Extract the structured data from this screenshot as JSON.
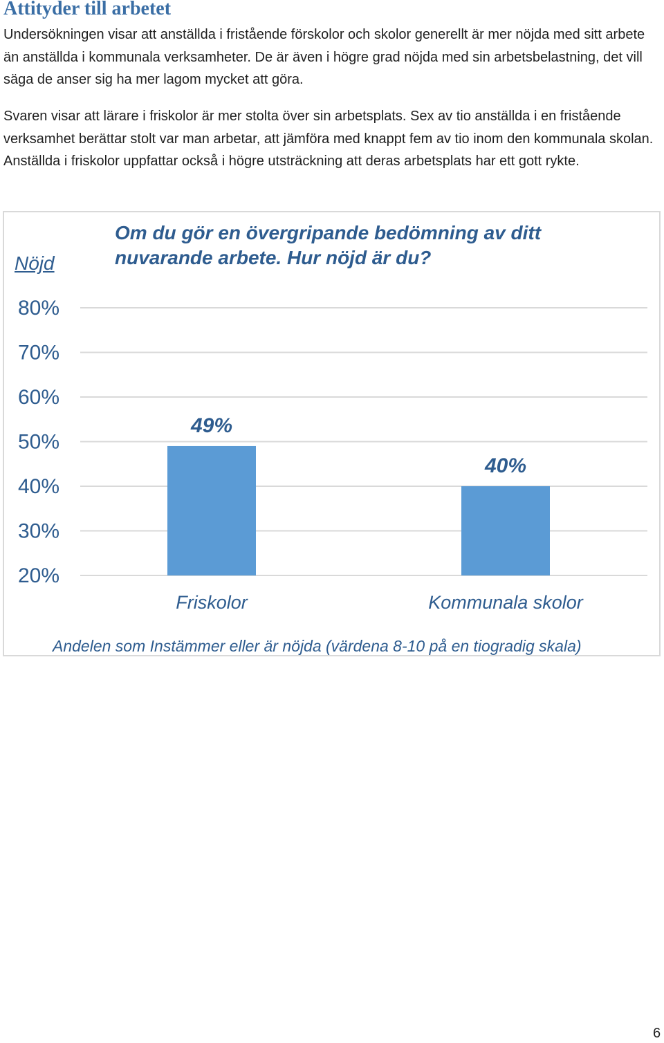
{
  "document": {
    "heading": "Attityder till arbetet",
    "paragraphs": [
      "Undersökningen visar att anställda i fristående förskolor och skolor generellt är mer nöjda med sitt arbete än anställda i kommunala verksamheter. De är även i högre grad nöjda med sin arbetsbelastning, det vill säga de anser sig ha mer lagom mycket att göra.",
      "Svaren visar att lärare i friskolor är mer stolta över sin arbetsplats. Sex av tio anställda i en fristående verksamhet berättar stolt var man arbetar, att jämföra med knappt fem av tio inom den kommunala skolan. Anställda i friskolor uppfattar också i högre utsträckning att deras arbetsplats har ett gott rykte."
    ],
    "page_number": "6"
  },
  "chart_data": {
    "type": "bar",
    "title": "Om du gör en övergripande bedömning av ditt nuvarande arbete. Hur nöjd är du?",
    "ylabel": "Nöjd",
    "xlabel": "Andelen som Instämmer eller är nöjda (värdena 8-10 på en tiogradig skala)",
    "categories": [
      "Friskolor",
      "Kommunala skolor"
    ],
    "values": [
      49,
      40
    ],
    "value_labels": [
      "49%",
      "40%"
    ],
    "ylim": [
      20,
      80
    ],
    "yticks": [
      80,
      70,
      60,
      50,
      40,
      30,
      20
    ],
    "ytick_labels": [
      "80%",
      "70%",
      "60%",
      "50%",
      "40%",
      "30%",
      "20%"
    ],
    "grid": true,
    "bar_color": "#5b9bd5",
    "grid_color": "#d9d9d9",
    "text_color": "#2e5c8f"
  }
}
